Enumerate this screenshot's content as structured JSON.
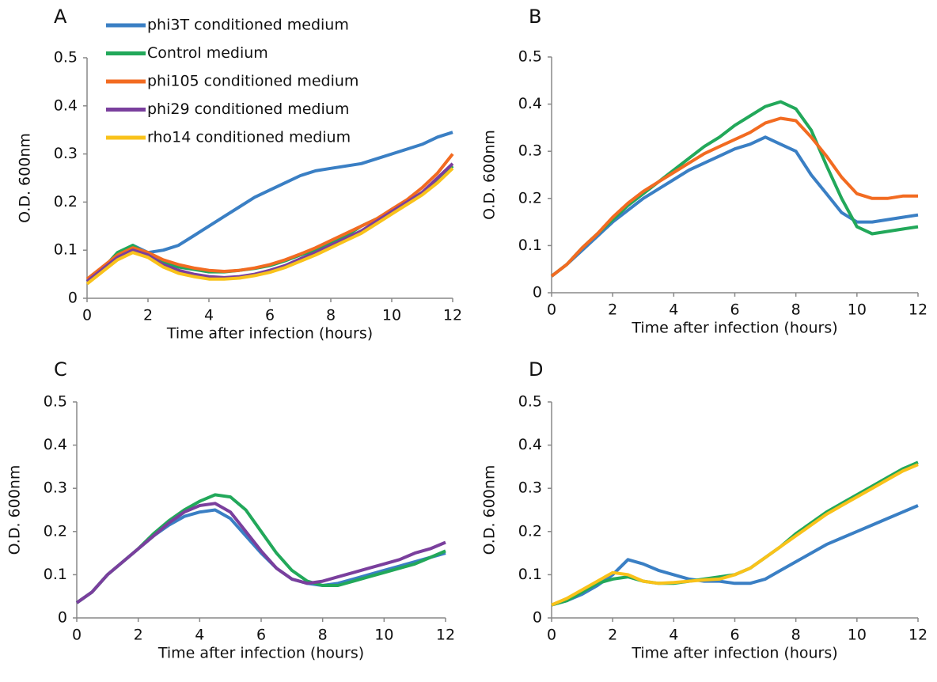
{
  "chart_data": [
    {
      "type": "line",
      "panel": "A",
      "xlabel": "Time after infection (hours)",
      "ylabel": "O.D. 600nm",
      "xlim": [
        0,
        12
      ],
      "xticks": [
        0,
        2,
        4,
        6,
        8,
        10,
        12
      ],
      "ylim": [
        0,
        0.5
      ],
      "yticks": [
        0,
        0.1,
        0.2,
        0.3,
        0.4,
        0.5
      ],
      "x": [
        0,
        0.5,
        1,
        1.5,
        2,
        2.5,
        3,
        3.5,
        4,
        4.5,
        5,
        5.5,
        6,
        6.5,
        7,
        7.5,
        8,
        8.5,
        9,
        9.5,
        10,
        10.5,
        11,
        11.5,
        12
      ],
      "series": [
        {
          "name": "phi3T conditioned medium",
          "color": "#3a7fc4",
          "values": [
            0.035,
            0.06,
            0.09,
            0.11,
            0.095,
            0.1,
            0.11,
            0.13,
            0.15,
            0.17,
            0.19,
            0.21,
            0.225,
            0.24,
            0.255,
            0.265,
            0.27,
            0.275,
            0.28,
            0.29,
            0.3,
            0.31,
            0.32,
            0.335,
            0.345
          ]
        },
        {
          "name": "Control medium",
          "color": "#22a85a",
          "values": [
            0.035,
            0.06,
            0.095,
            0.11,
            0.09,
            0.075,
            0.065,
            0.06,
            0.055,
            0.055,
            0.058,
            0.062,
            0.068,
            0.078,
            0.09,
            0.1,
            0.115,
            0.13,
            0.15,
            0.165,
            0.18,
            0.2,
            0.22,
            0.245,
            0.275
          ]
        },
        {
          "name": "phi105 conditioned medium",
          "color": "#f26b21",
          "values": [
            0.04,
            0.065,
            0.09,
            0.105,
            0.095,
            0.08,
            0.07,
            0.063,
            0.058,
            0.056,
            0.058,
            0.063,
            0.07,
            0.08,
            0.092,
            0.105,
            0.12,
            0.135,
            0.15,
            0.165,
            0.185,
            0.205,
            0.23,
            0.26,
            0.3
          ]
        },
        {
          "name": "phi29 conditioned medium",
          "color": "#7a3f9d",
          "values": [
            0.035,
            0.06,
            0.085,
            0.1,
            0.09,
            0.07,
            0.058,
            0.05,
            0.045,
            0.043,
            0.045,
            0.05,
            0.058,
            0.068,
            0.082,
            0.095,
            0.11,
            0.125,
            0.14,
            0.16,
            0.18,
            0.2,
            0.22,
            0.25,
            0.28
          ]
        },
        {
          "name": "rho14 conditioned medium",
          "color": "#f9c21a",
          "values": [
            0.03,
            0.055,
            0.08,
            0.095,
            0.085,
            0.065,
            0.052,
            0.045,
            0.04,
            0.04,
            0.042,
            0.047,
            0.054,
            0.064,
            0.077,
            0.09,
            0.105,
            0.12,
            0.135,
            0.155,
            0.175,
            0.195,
            0.215,
            0.24,
            0.27
          ]
        }
      ]
    },
    {
      "type": "line",
      "panel": "B",
      "xlabel": "Time after infection (hours)",
      "ylabel": "O.D. 600nm",
      "xlim": [
        0,
        12
      ],
      "xticks": [
        0,
        2,
        4,
        6,
        8,
        10,
        12
      ],
      "ylim": [
        0,
        0.5
      ],
      "yticks": [
        0,
        0.1,
        0.2,
        0.3,
        0.4,
        0.5
      ],
      "x": [
        0,
        0.5,
        1,
        1.5,
        2,
        2.5,
        3,
        3.5,
        4,
        4.5,
        5,
        5.5,
        6,
        6.5,
        7,
        7.5,
        8,
        8.5,
        9,
        9.5,
        10,
        10.5,
        11,
        11.5,
        12
      ],
      "series": [
        {
          "color": "#3a7fc4",
          "values": [
            0.035,
            0.06,
            0.09,
            0.12,
            0.15,
            0.175,
            0.2,
            0.22,
            0.24,
            0.26,
            0.275,
            0.29,
            0.305,
            0.315,
            0.33,
            0.315,
            0.3,
            0.25,
            0.21,
            0.17,
            0.15,
            0.15,
            0.155,
            0.16,
            0.165
          ]
        },
        {
          "color": "#22a85a",
          "values": [
            0.035,
            0.06,
            0.095,
            0.125,
            0.155,
            0.185,
            0.21,
            0.235,
            0.26,
            0.285,
            0.31,
            0.33,
            0.355,
            0.375,
            0.395,
            0.405,
            0.39,
            0.345,
            0.27,
            0.2,
            0.14,
            0.125,
            0.13,
            0.135,
            0.14
          ]
        },
        {
          "color": "#f26b21",
          "values": [
            0.035,
            0.06,
            0.095,
            0.125,
            0.16,
            0.19,
            0.215,
            0.235,
            0.255,
            0.275,
            0.295,
            0.31,
            0.325,
            0.34,
            0.36,
            0.37,
            0.365,
            0.33,
            0.29,
            0.245,
            0.21,
            0.2,
            0.2,
            0.205,
            0.205
          ]
        }
      ]
    },
    {
      "type": "line",
      "panel": "C",
      "xlabel": "Time after infection (hours)",
      "ylabel": "O.D. 600nm",
      "xlim": [
        0,
        12
      ],
      "xticks": [
        0,
        2,
        4,
        6,
        8,
        10,
        12
      ],
      "ylim": [
        0,
        0.5
      ],
      "yticks": [
        0,
        0.1,
        0.2,
        0.3,
        0.4,
        0.5
      ],
      "x": [
        0,
        0.5,
        1,
        1.5,
        2,
        2.5,
        3,
        3.5,
        4,
        4.5,
        5,
        5.5,
        6,
        6.5,
        7,
        7.5,
        8,
        8.5,
        9,
        9.5,
        10,
        10.5,
        11,
        11.5,
        12
      ],
      "series": [
        {
          "color": "#3a7fc4",
          "values": [
            0.035,
            0.06,
            0.1,
            0.13,
            0.16,
            0.19,
            0.215,
            0.235,
            0.245,
            0.25,
            0.23,
            0.19,
            0.15,
            0.115,
            0.09,
            0.08,
            0.075,
            0.08,
            0.09,
            0.1,
            0.11,
            0.12,
            0.13,
            0.14,
            0.15
          ]
        },
        {
          "color": "#22a85a",
          "values": [
            0.035,
            0.06,
            0.1,
            0.13,
            0.16,
            0.195,
            0.225,
            0.25,
            0.27,
            0.285,
            0.28,
            0.25,
            0.2,
            0.15,
            0.11,
            0.085,
            0.075,
            0.075,
            0.085,
            0.095,
            0.105,
            0.115,
            0.125,
            0.14,
            0.155
          ]
        },
        {
          "color": "#7a3f9d",
          "values": [
            0.035,
            0.06,
            0.1,
            0.13,
            0.16,
            0.19,
            0.22,
            0.245,
            0.26,
            0.265,
            0.245,
            0.2,
            0.155,
            0.115,
            0.09,
            0.08,
            0.085,
            0.095,
            0.105,
            0.115,
            0.125,
            0.135,
            0.15,
            0.16,
            0.175
          ]
        }
      ]
    },
    {
      "type": "line",
      "panel": "D",
      "xlabel": "Time after infection (hours)",
      "ylabel": "O.D. 600nm",
      "xlim": [
        0,
        12
      ],
      "xticks": [
        0,
        2,
        4,
        6,
        8,
        10,
        12
      ],
      "ylim": [
        0,
        0.5
      ],
      "yticks": [
        0,
        0.1,
        0.2,
        0.3,
        0.4,
        0.5
      ],
      "x": [
        0,
        0.5,
        1,
        1.5,
        2,
        2.5,
        3,
        3.5,
        4,
        4.5,
        5,
        5.5,
        6,
        6.5,
        7,
        7.5,
        8,
        8.5,
        9,
        9.5,
        10,
        10.5,
        11,
        11.5,
        12
      ],
      "series": [
        {
          "color": "#3a7fc4",
          "values": [
            0.03,
            0.04,
            0.055,
            0.075,
            0.1,
            0.135,
            0.125,
            0.11,
            0.1,
            0.09,
            0.085,
            0.085,
            0.08,
            0.08,
            0.09,
            0.11,
            0.13,
            0.15,
            0.17,
            0.185,
            0.2,
            0.215,
            0.23,
            0.245,
            0.26
          ]
        },
        {
          "color": "#22a85a",
          "values": [
            0.03,
            0.04,
            0.06,
            0.08,
            0.09,
            0.095,
            0.085,
            0.08,
            0.08,
            0.085,
            0.09,
            0.095,
            0.1,
            0.115,
            0.14,
            0.165,
            0.195,
            0.22,
            0.245,
            0.265,
            0.285,
            0.305,
            0.325,
            0.345,
            0.36
          ]
        },
        {
          "color": "#f9c21a",
          "values": [
            0.03,
            0.045,
            0.065,
            0.085,
            0.105,
            0.1,
            0.085,
            0.08,
            0.082,
            0.085,
            0.088,
            0.09,
            0.1,
            0.115,
            0.14,
            0.165,
            0.19,
            0.215,
            0.24,
            0.26,
            0.28,
            0.3,
            0.32,
            0.34,
            0.355
          ]
        }
      ]
    }
  ]
}
